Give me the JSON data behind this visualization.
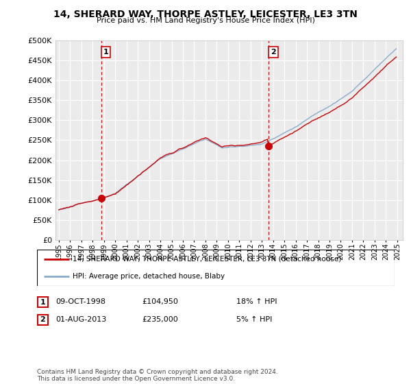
{
  "title": "14, SHERARD WAY, THORPE ASTLEY, LEICESTER, LE3 3TN",
  "subtitle": "Price paid vs. HM Land Registry's House Price Index (HPI)",
  "legend_line1": "14, SHERARD WAY, THORPE ASTLEY, LEICESTER, LE3 3TN (detached house)",
  "legend_line2": "HPI: Average price, detached house, Blaby",
  "transaction1_label": "1",
  "transaction1_date": "09-OCT-1998",
  "transaction1_price": "£104,950",
  "transaction1_hpi": "18% ↑ HPI",
  "transaction2_label": "2",
  "transaction2_date": "01-AUG-2013",
  "transaction2_price": "£235,000",
  "transaction2_hpi": "5% ↑ HPI",
  "footer": "Contains HM Land Registry data © Crown copyright and database right 2024.\nThis data is licensed under the Open Government Licence v3.0.",
  "ylim": [
    0,
    500000
  ],
  "yticks": [
    0,
    50000,
    100000,
    150000,
    200000,
    250000,
    300000,
    350000,
    400000,
    450000,
    500000
  ],
  "plot_background": "#ebebeb",
  "grid_color": "#ffffff",
  "red_color": "#cc0000",
  "blue_color": "#88aacc",
  "vline_color": "#cc0000",
  "marker_color": "#cc0000",
  "start_year": 1995,
  "end_year": 2025,
  "t1_year": 1998,
  "t1_month": 9,
  "t1_price": 104950,
  "t2_year": 2013,
  "t2_month": 7,
  "t2_price": 235000
}
